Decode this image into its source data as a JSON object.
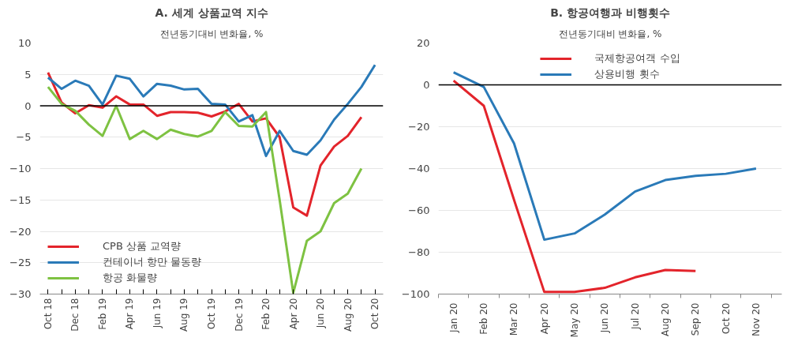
{
  "chart_data": [
    {
      "type": "line",
      "title": "A. 세계 상품교역 지수",
      "subtitle": "전년동기대비 변화율, %",
      "categories": [
        "Oct 18",
        null,
        "Dec 18",
        null,
        "Feb 19",
        null,
        "Apr 19",
        null,
        "Jun 19",
        null,
        "Aug 19",
        null,
        "Oct 19",
        null,
        "Dec 19",
        null,
        "Feb 20",
        null,
        "Apr 20",
        null,
        "Jun 20",
        null,
        "Aug 20",
        null,
        "Oct 20"
      ],
      "series": [
        {
          "name": "CPB 상품 교역량",
          "color": "#e3242b",
          "values": [
            5.3,
            0.5,
            -1.2,
            0.1,
            -0.3,
            1.5,
            0.2,
            0.2,
            -1.6,
            -1,
            -1,
            -1.1,
            -1.7,
            -0.9,
            0.3,
            -2.5,
            -2,
            -5,
            -16.2,
            -17.5,
            -9.5,
            -6.5,
            -4.8,
            -1.8,
            null
          ]
        },
        {
          "name": "컨테이너 항만 물동량",
          "color": "#2a7ab8",
          "values": [
            4.5,
            2.7,
            4,
            3.2,
            0.2,
            4.8,
            4.3,
            1.5,
            3.5,
            3.2,
            2.6,
            2.7,
            0.3,
            0.2,
            -2.5,
            -1.5,
            -8,
            -4,
            -7.2,
            -7.8,
            -5.5,
            -2.2,
            0.3,
            3,
            6.5
          ]
        },
        {
          "name": "항공 화물량",
          "color": "#7ec242",
          "values": [
            3,
            0.3,
            -0.8,
            -3,
            -4.8,
            0,
            -5.3,
            -4,
            -5.3,
            -3.8,
            -4.5,
            -4.9,
            -4,
            -1,
            -3.2,
            -3.3,
            -1,
            -15,
            -29.8,
            -21.5,
            -20,
            -15.5,
            -14,
            -10,
            null
          ]
        }
      ],
      "ylim": [
        -30,
        10
      ],
      "yticks": [
        -30,
        -25,
        -20,
        -15,
        -10,
        -5,
        0,
        5,
        10
      ],
      "grid": "y",
      "legend": "bottom left",
      "ref_lines": [
        {
          "axis": "y",
          "value": 0,
          "color": "#000000"
        }
      ]
    },
    {
      "type": "line",
      "title": "B. 항공여행과 비행횟수",
      "subtitle": "전년동기대비 변화율, %",
      "categories": [
        "Jan 20",
        "Feb 20",
        "Mar 20",
        "Apr 20",
        "May 20",
        "Jun 20",
        "Jul 20",
        "Aug 20",
        "Sep 20",
        "Oct 20",
        "Nov 20"
      ],
      "series": [
        {
          "name": "국제항공여객 수입",
          "color": "#e3242b",
          "values": [
            2,
            -10,
            -55,
            -99,
            -99,
            -97,
            -92,
            -88.5,
            -89,
            null,
            null
          ]
        },
        {
          "name": "상용비행 횟수",
          "color": "#2a7ab8",
          "values": [
            6,
            -1,
            -28,
            -74,
            -71,
            -62,
            -51,
            -45.5,
            -43.5,
            -42.5,
            -40
          ]
        }
      ],
      "ylim": [
        -100,
        20
      ],
      "yticks": [
        -100,
        -80,
        -60,
        -40,
        -20,
        0,
        20
      ],
      "grid": "y",
      "legend": "top",
      "ref_lines": [
        {
          "axis": "y",
          "value": 0,
          "color": "#000000"
        }
      ]
    }
  ]
}
